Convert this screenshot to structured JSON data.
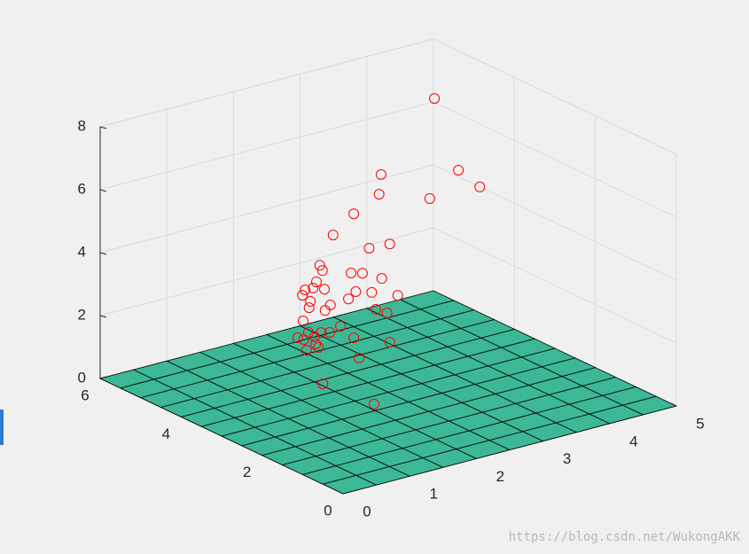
{
  "chart_data": {
    "type": "scatter3d",
    "x": [
      3.8,
      4.16,
      4.48,
      3.73,
      3.0,
      2.97,
      2.59,
      2.28,
      3.13,
      2.82,
      2.08,
      2.12,
      2.55,
      2.72,
      3.01,
      2.03,
      1.86,
      1.98,
      2.15,
      1.82,
      2.62,
      2.86,
      2.51,
      3.25,
      1.94,
      2.24,
      1.92,
      2.16,
      2.92,
      3.09,
      1.83,
      2.39,
      2.1,
      1.91,
      2.23,
      1.75,
      1.84,
      2.59,
      3.13,
      2.02,
      2.06,
      1.88,
      2.67,
      1.52,
      1.68,
      2.0
    ],
    "y": [
      4,
      4,
      4,
      4,
      4,
      4,
      4,
      4,
      4,
      4,
      4,
      4,
      4,
      4,
      4,
      4,
      4,
      4,
      4,
      4,
      4,
      4,
      4,
      4,
      4,
      4,
      4,
      4,
      4,
      4,
      4,
      4,
      4,
      4,
      4,
      4,
      4,
      4,
      4,
      4,
      4,
      4,
      4,
      3,
      2,
      4
    ],
    "z": [
      8.0,
      5.52,
      4.81,
      4.86,
      6.03,
      5.42,
      5.01,
      4.51,
      3.75,
      3.79,
      3.66,
      3.47,
      3.15,
      3.05,
      2.72,
      3.16,
      3.0,
      2.99,
      2.86,
      2.85,
      2.52,
      2.36,
      2.35,
      2.05,
      2.59,
      2.31,
      2.4,
      2.18,
      1.79,
      1.58,
      2.03,
      1.55,
      1.51,
      1.62,
      1.44,
      1.54,
      1.43,
      1.07,
      0.63,
      1.19,
      1.06,
      1.07,
      0.38,
      0.81,
      0.69,
      1.43
    ],
    "marker_color": "#ff0000",
    "xlim": [
      0,
      5
    ],
    "ylim": [
      0,
      6
    ],
    "zlim": [
      0,
      8
    ],
    "xticks": [
      0,
      1,
      2,
      3,
      4,
      5
    ],
    "yticks": [
      0,
      2,
      4,
      6
    ],
    "zticks": [
      0,
      2,
      4,
      6,
      8
    ],
    "grid": true,
    "surface": {
      "z": 0,
      "step": 0.5,
      "color": "#3cb896"
    }
  },
  "watermark": "https://blog.csdn.net/WukongAKK"
}
